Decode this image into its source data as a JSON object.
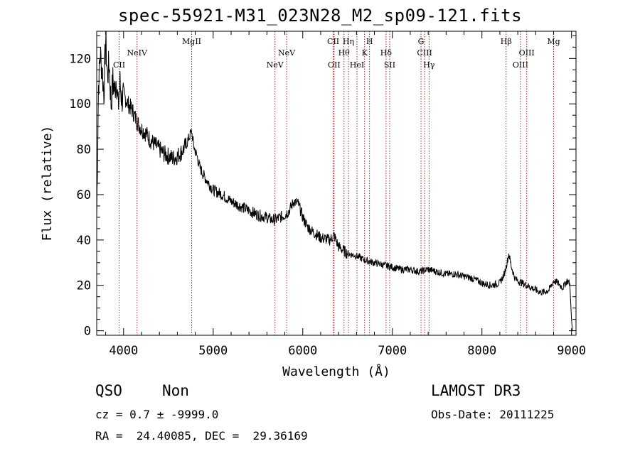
{
  "chart_data": {
    "type": "line",
    "title": "spec-55921-M31_023N28_M2_sp09-121.fits",
    "xlabel": "Wavelength (Å)",
    "ylabel": "Flux (relative)",
    "xlim": [
      3700,
      9050
    ],
    "ylim": [
      -2,
      132
    ],
    "xticks": [
      4000,
      5000,
      6000,
      7000,
      8000,
      9000
    ],
    "yticks": [
      0,
      20,
      40,
      60,
      80,
      100,
      120
    ],
    "series": [
      {
        "name": "flux",
        "x": [
          3700,
          3720,
          3740,
          3760,
          3780,
          3800,
          3820,
          3840,
          3860,
          3880,
          3900,
          3920,
          3940,
          3960,
          3980,
          4000,
          4050,
          4100,
          4150,
          4200,
          4250,
          4300,
          4350,
          4400,
          4450,
          4500,
          4550,
          4600,
          4650,
          4700,
          4720,
          4740,
          4760,
          4780,
          4800,
          4820,
          4850,
          4900,
          4950,
          5000,
          5100,
          5200,
          5300,
          5400,
          5500,
          5600,
          5650,
          5700,
          5750,
          5800,
          5850,
          5900,
          5950,
          6000,
          6050,
          6100,
          6200,
          6300,
          6350,
          6400,
          6500,
          6600,
          6700,
          6800,
          6900,
          7000,
          7100,
          7200,
          7300,
          7400,
          7500,
          7600,
          7700,
          7800,
          7900,
          8000,
          8100,
          8200,
          8250,
          8280,
          8300,
          8330,
          8370,
          8400,
          8450,
          8500,
          8550,
          8600,
          8650,
          8700,
          8750,
          8800,
          8850,
          8900,
          8950,
          8980,
          9000,
          9010
        ],
        "values": [
          50,
          108,
          122,
          115,
          105,
          128,
          112,
          118,
          100,
          110,
          106,
          112,
          98,
          109,
          102,
          104,
          100,
          97,
          92,
          89,
          87,
          84,
          82,
          80,
          78,
          77,
          76,
          77,
          79,
          82,
          84,
          86,
          88,
          82,
          79,
          77,
          72,
          68,
          65,
          62,
          60,
          57,
          55,
          53,
          51,
          50,
          49,
          49,
          50,
          51,
          53,
          57,
          56,
          50,
          46,
          44,
          41,
          40,
          42,
          37,
          34,
          33,
          31,
          30,
          29,
          28,
          27,
          27,
          26,
          27,
          26,
          25,
          25,
          24,
          23,
          21,
          20,
          21,
          25,
          30,
          34,
          28,
          23,
          22,
          21,
          20,
          19,
          18,
          17,
          17,
          18,
          22,
          21,
          19,
          22,
          21,
          5,
          0
        ]
      }
    ],
    "lines": [
      {
        "label": "CII",
        "wave": 3950,
        "row": 3
      },
      {
        "label": "NeIV",
        "wave": 4150,
        "row": 2
      },
      {
        "label": "MgII",
        "wave": 4760,
        "row": 1
      },
      {
        "label": "NeV",
        "wave": 5690,
        "row": 3
      },
      {
        "label": "NeV",
        "wave": 5820,
        "row": 2
      },
      {
        "label": "OII",
        "wave": 6350,
        "row": 3
      },
      {
        "label": "CII",
        "wave": 6340,
        "row": 1
      },
      {
        "label": "Hθ",
        "wave": 6460,
        "row": 2
      },
      {
        "label": "Hη",
        "wave": 6510,
        "row": 1
      },
      {
        "label": "HeI",
        "wave": 6605,
        "row": 3
      },
      {
        "label": "K",
        "wave": 6690,
        "row": 2
      },
      {
        "label": "H",
        "wave": 6745,
        "row": 1
      },
      {
        "label": "Hδ",
        "wave": 6930,
        "row": 2
      },
      {
        "label": "SII",
        "wave": 6970,
        "row": 3
      },
      {
        "label": "G",
        "wave": 7320,
        "row": 1
      },
      {
        "label": "CIII",
        "wave": 7360,
        "row": 2
      },
      {
        "label": "Hγ",
        "wave": 7410,
        "row": 3
      },
      {
        "label": "Hβ",
        "wave": 8270,
        "row": 1
      },
      {
        "label": "OIII",
        "wave": 8430,
        "row": 3
      },
      {
        "label": "OIII",
        "wave": 8500,
        "row": 2
      },
      {
        "label": "Mg",
        "wave": 8800,
        "row": 1
      }
    ]
  },
  "info": {
    "class": "QSO",
    "subclass": "Non",
    "survey": "LAMOST DR3",
    "cz": "cz = 0.7 ± -9999.0",
    "obs_date": "Obs-Date: 20111225",
    "coords": "RA =  24.40085, DEC =  29.36169"
  },
  "colors": {
    "line_marker": "#b02020",
    "spectrum": "#000000"
  }
}
